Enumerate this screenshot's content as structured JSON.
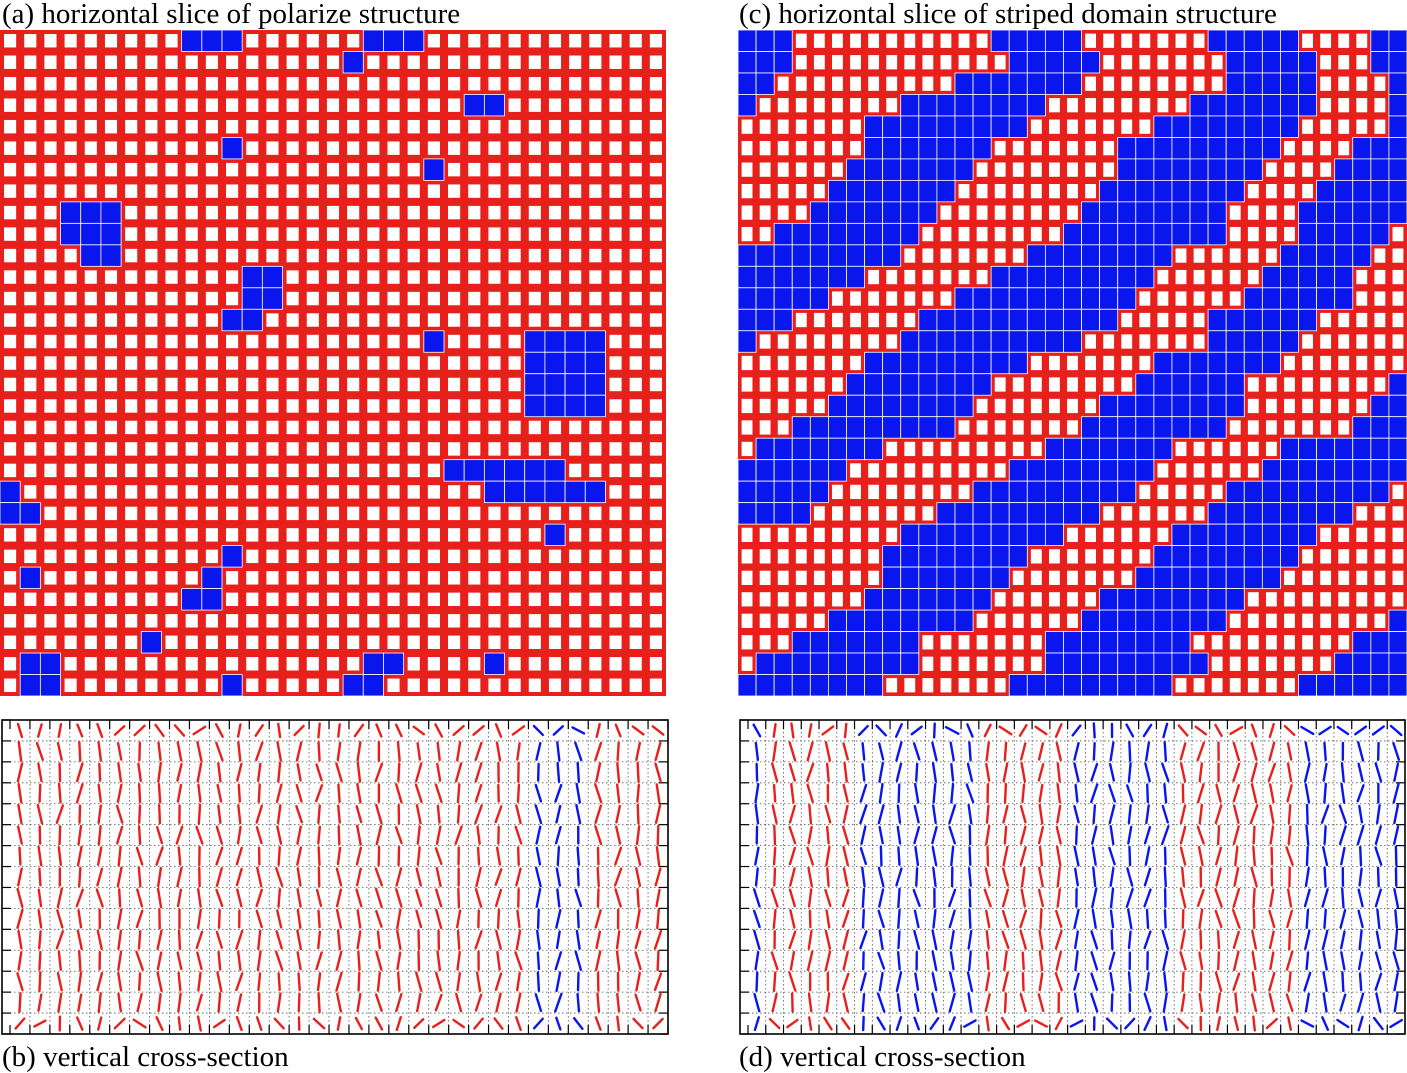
{
  "colors": {
    "up_domain": "#e8201c",
    "down_domain": "#0a16ee",
    "cell_fill": "#ffffff",
    "frame": "#000000"
  },
  "panels": {
    "a": {
      "label": "(a) horizontal slice of polarize structure",
      "rows": [
        "000000000111000000111000000000000",
        "000000000000000001000000000000000",
        "000000000000000000000000000000000",
        "000000000000000000000001100000000",
        "000000000000000000000000000000000",
        "000000000001000000000000000000000",
        "000000000000000000000100000000000",
        "000000000000000000000000000000000",
        "000111000000000000000000000000000",
        "000111000000000000000000000000000",
        "000011000000000000000000000000000",
        "000000000000110000000000000000000",
        "000000000000110000000000000000000",
        "000000000001100000000000000000000",
        "000000000000000000000100001111000",
        "000000000000000000000000001111000",
        "000000000000000000000000001111000",
        "000000000000000000000000001111000",
        "000000000000000000000000000000000",
        "000000000000000000000000000000000",
        "000000000000000000000011111100000",
        "100000000000000000000000111111000",
        "110000000000000000000000000000000",
        "000000000000000000000000000100000",
        "000000000001000000000000000000000",
        "010000000010000000000000000000000",
        "000000000110000000000000000000000",
        "000000000000000000000000000000000",
        "000000010000000000000000000000000",
        "011000000000000000110000100000000",
        "011000000001000001100000000000000"
      ]
    },
    "c": {
      "label": "(c) horizontal slice of striped domain structure",
      "rows": [
        "1110000000000011111000000011111000011",
        "1110000000000001111100000001111100011",
        "1100000000001111111000000001111100001",
        "1000000001111111100000000111111100001",
        "0000000111111111000000011111111000001",
        "0000000111111100000001111111110000111",
        "0000001111111000000001111111100001111",
        "0000011111110000000011111111000011111",
        "0000111111100000000111111110000111111",
        "0011111111000000001111111110000111110",
        "1111111110000000111111110000001111100",
        "1111111000000011111111100000011111000",
        "1111100000001111111111000000111111000",
        "1110000000111111111110000011111100000",
        "1000000001111111111000000011111000000",
        "0000000111111111000000011111110000000",
        "0000001111111100000000111111000000001",
        "0000011111111000000011111111000000011",
        "0001111111110000000111111110000000111",
        "0111111100000000011111110000001111111",
        "1111110000000001111111100000011111111",
        "1111100000000111111111000001111111110",
        "1111000000011111111100000011111111000",
        "0000000001111111110000001111111100000",
        "0000000011111111000000011111111000000",
        "0000000011111110000000111111110000000",
        "0000000111111100000011111111000000000",
        "0000011111111000000111111110000000001",
        "0001111111000000011111111000000000111",
        "0111111111000000011111111100000001111",
        "1111111100000001111111110000000111111"
      ]
    },
    "b": {
      "label": "(b) vertical cross-section",
      "columns": [
        "R",
        "R",
        "R",
        "R",
        "R",
        "R",
        "R",
        "R",
        "R",
        "R",
        "R",
        "R",
        "R",
        "R",
        "R",
        "R",
        "R",
        "R",
        "R",
        "R",
        "R",
        "R",
        "R",
        "R",
        "R",
        "R",
        "B",
        "B",
        "B",
        "R",
        "R",
        "R",
        "R"
      ],
      "rows": 15,
      "blue_top_cells": [
        [
          25,
          0
        ],
        [
          26,
          0
        ],
        [
          27,
          0
        ]
      ]
    },
    "d": {
      "label": "(d) vertical cross-section",
      "columns": [
        "B",
        "R",
        "R",
        "R",
        "R",
        "R",
        "B",
        "B",
        "B",
        "B",
        "B",
        "B",
        "B",
        "R",
        "R",
        "R",
        "R",
        "R",
        "B",
        "B",
        "B",
        "B",
        "B",
        "B",
        "R",
        "R",
        "R",
        "R",
        "R",
        "R",
        "R",
        "B",
        "B",
        "B",
        "B",
        "B",
        "B"
      ],
      "rows": 15
    }
  }
}
